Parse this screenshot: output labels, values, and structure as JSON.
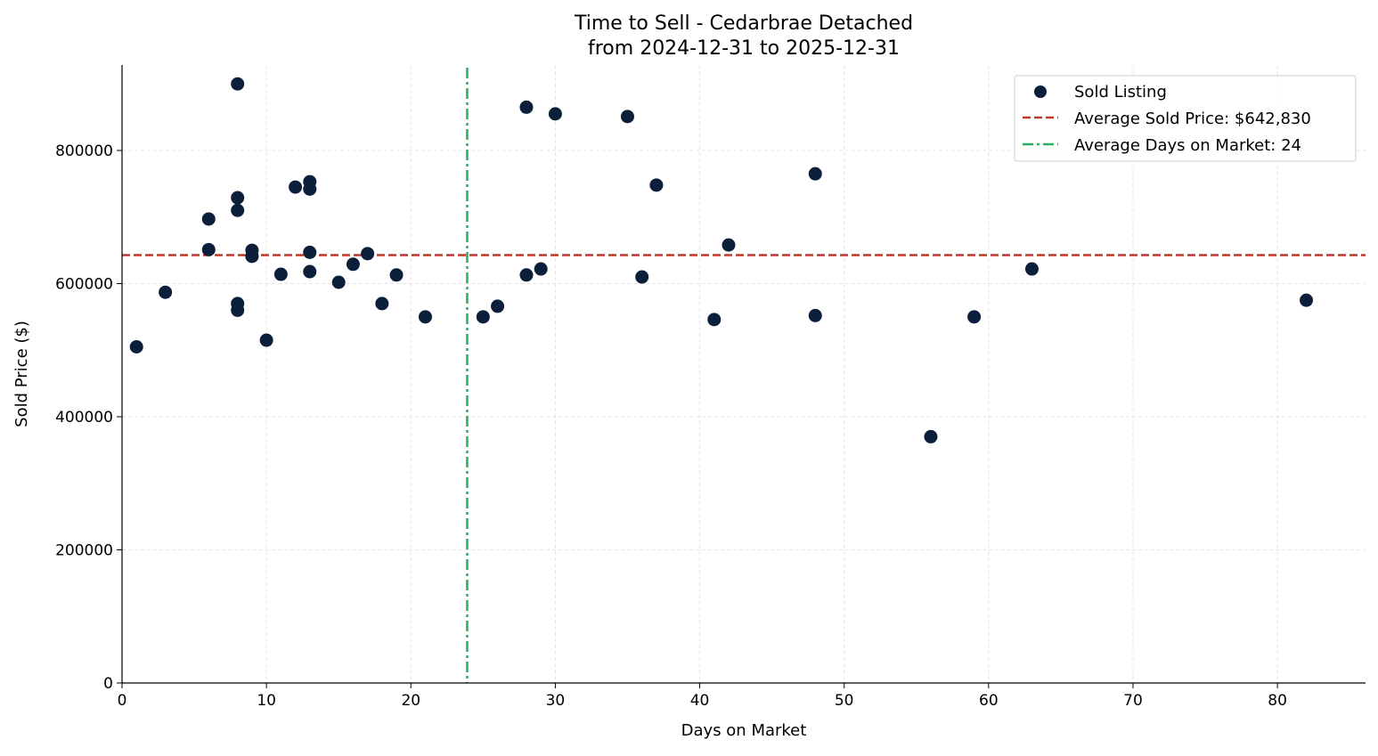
{
  "chart_data": {
    "type": "scatter",
    "title": "Time to Sell - Cedarbrae Detached",
    "subtitle": "from 2024-12-31 to 2025-12-31",
    "xlabel": "Days on Market",
    "ylabel": "Sold Price ($)",
    "xlim": [
      0,
      86.1
    ],
    "ylim": [
      0,
      928400
    ],
    "xticks": [
      0,
      10,
      20,
      30,
      40,
      50,
      60,
      70,
      80
    ],
    "yticks": [
      0,
      200000,
      400000,
      600000,
      800000
    ],
    "grid": true,
    "legend_position": "top-right",
    "series": [
      {
        "name": "Sold Listing",
        "color": "#0b1f3a",
        "points": [
          [
            1,
            505000
          ],
          [
            3,
            587000
          ],
          [
            6,
            697000
          ],
          [
            6,
            651000
          ],
          [
            8,
            900000
          ],
          [
            8,
            729000
          ],
          [
            8,
            710000
          ],
          [
            8,
            570000
          ],
          [
            8,
            560000
          ],
          [
            9,
            650000
          ],
          [
            9,
            641000
          ],
          [
            10,
            515000
          ],
          [
            11,
            614000
          ],
          [
            12,
            745000
          ],
          [
            13,
            753000
          ],
          [
            13,
            742000
          ],
          [
            13,
            647000
          ],
          [
            13,
            618000
          ],
          [
            15,
            602000
          ],
          [
            16,
            629000
          ],
          [
            17,
            645000
          ],
          [
            18,
            570000
          ],
          [
            19,
            613000
          ],
          [
            21,
            550000
          ],
          [
            25,
            550000
          ],
          [
            26,
            566000
          ],
          [
            28,
            865000
          ],
          [
            28,
            613000
          ],
          [
            29,
            622000
          ],
          [
            30,
            855000
          ],
          [
            35,
            851000
          ],
          [
            36,
            610000
          ],
          [
            37,
            748000
          ],
          [
            41,
            546000
          ],
          [
            42,
            658000
          ],
          [
            48,
            765000
          ],
          [
            48,
            552000
          ],
          [
            56,
            370000
          ],
          [
            59,
            550000
          ],
          [
            63,
            622000
          ],
          [
            82,
            575000
          ]
        ]
      }
    ],
    "reference_lines": [
      {
        "name": "Average Sold Price: $642,830",
        "orientation": "horizontal",
        "value": 642830,
        "color": "#c0392b",
        "style": "dashed"
      },
      {
        "name": "Average Days on Market: 24",
        "orientation": "vertical",
        "value": 23.9,
        "color": "#27ae60",
        "style": "dashdot"
      }
    ]
  }
}
